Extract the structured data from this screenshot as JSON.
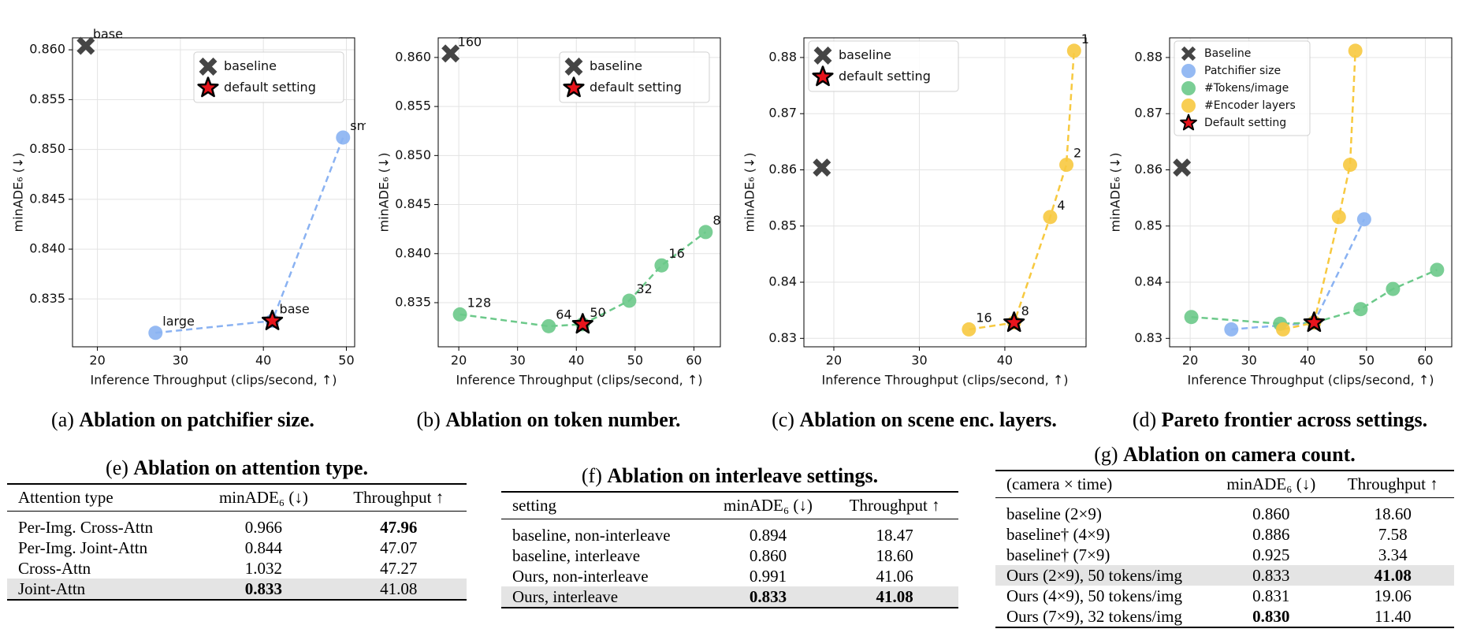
{
  "chart_data": [
    {
      "type": "line",
      "label": "(a)",
      "title": "Ablation on patchifier size.",
      "xlabel": "Inference Throughput (clips/second, ↑)",
      "ylabel": "minADE₆ (↓)",
      "xlim": [
        17,
        51
      ],
      "ylim": [
        0.8302,
        0.8612
      ],
      "xticks": [
        20,
        30,
        40,
        50
      ],
      "yticks": [
        0.835,
        {
          "value": 0.84,
          "label": "0.840"
        },
        0.845,
        {
          "value": 0.85,
          "label": "0.850"
        },
        0.855,
        {
          "value": 0.86,
          "label": "0.860"
        }
      ],
      "grid": true,
      "legend": "upper right",
      "series": [
        {
          "name": "baseline",
          "marker": "x",
          "color": "#454545",
          "x": [
            18.6
          ],
          "values": [
            0.8604
          ],
          "point_labels": [
            "base"
          ]
        },
        {
          "marker": "o",
          "color": "#8ab2f2",
          "linestyle": "dashed",
          "x": [
            27,
            41.08,
            49.6
          ],
          "values": [
            0.8316,
            0.8328,
            0.8512
          ],
          "point_labels": [
            "large",
            "base",
            "small"
          ]
        },
        {
          "name": "default setting",
          "marker": "*",
          "color": "#e8141c",
          "x": [
            41.08
          ],
          "values": [
            0.8328
          ]
        }
      ]
    },
    {
      "type": "line",
      "label": "(b)",
      "title": "Ablation on token number.",
      "xlabel": "Inference Throughput (clips/second, ↑)",
      "ylabel": "minADE₆ (↓)",
      "xlim": [
        16.5,
        64.5
      ],
      "ylim": [
        0.8305,
        0.862
      ],
      "xticks": [
        20,
        30,
        40,
        50,
        60
      ],
      "yticks": [
        0.835,
        {
          "value": 0.84,
          "label": "0.840"
        },
        0.845,
        {
          "value": 0.85,
          "label": "0.850"
        },
        0.855,
        {
          "value": 0.86,
          "label": "0.860"
        }
      ],
      "grid": true,
      "legend": "upper right",
      "series": [
        {
          "name": "baseline",
          "marker": "x",
          "color": "#454545",
          "x": [
            18.6
          ],
          "values": [
            0.8604
          ],
          "point_labels": [
            "160"
          ]
        },
        {
          "marker": "o",
          "color": "#6cc98a",
          "linestyle": "dashed",
          "x": [
            20.2,
            35.3,
            41.08,
            49,
            54.5,
            62
          ],
          "values": [
            0.8338,
            0.8326,
            0.8328,
            0.8352,
            0.8388,
            0.8422
          ],
          "point_labels": [
            "128",
            "64",
            "50",
            "32",
            "16",
            "8"
          ]
        },
        {
          "name": "default setting",
          "marker": "*",
          "color": "#e8141c",
          "x": [
            41.08
          ],
          "values": [
            0.8328
          ]
        }
      ]
    },
    {
      "type": "line",
      "label": "(c)",
      "title": "Ablation on scene enc. layers.",
      "xlabel": "Inference Throughput (clips/second, ↑)",
      "ylabel": "minADE₆ (↓)",
      "xlim": [
        16.5,
        49.5
      ],
      "ylim": [
        0.8285,
        0.8835
      ],
      "xticks": [
        20,
        30,
        40
      ],
      "yticks": [
        0.83,
        0.84,
        0.85,
        0.86,
        0.87,
        0.88
      ],
      "grid": true,
      "legend": "upper left",
      "series": [
        {
          "name": "baseline",
          "marker": "x",
          "color": "#454545",
          "x": [
            18.6
          ],
          "values": [
            0.8604
          ]
        },
        {
          "marker": "o",
          "color": "#f7c940",
          "linestyle": "dashed",
          "x": [
            35.8,
            41.08,
            45.3,
            47.2,
            48.1
          ],
          "values": [
            0.8316,
            0.8328,
            0.8516,
            0.8609,
            0.8812
          ],
          "point_labels": [
            "16",
            "8",
            "4",
            "2",
            "1"
          ]
        },
        {
          "name": "default setting",
          "marker": "*",
          "color": "#e8141c",
          "x": [
            41.08
          ],
          "values": [
            0.8328
          ]
        }
      ]
    },
    {
      "type": "line",
      "label": "(d)",
      "title": "Pareto frontier across settings.",
      "xlabel": "Inference Throughput (clips/second, ↑)",
      "ylabel": "minADE₆ (↓)",
      "xlim": [
        16.5,
        64.5
      ],
      "ylim": [
        0.8285,
        0.8835
      ],
      "xticks": [
        20,
        30,
        40,
        50,
        60
      ],
      "yticks": [
        0.83,
        0.84,
        0.85,
        0.86,
        0.87,
        0.88
      ],
      "grid": true,
      "legend": "upper left",
      "series": [
        {
          "name": "Baseline",
          "marker": "x",
          "color": "#454545",
          "x": [
            18.6
          ],
          "values": [
            0.8604
          ]
        },
        {
          "name": "Patchifier size",
          "marker": "o",
          "color": "#8ab2f2",
          "linestyle": "dashed",
          "x": [
            27,
            41.08,
            49.6
          ],
          "values": [
            0.8316,
            0.8328,
            0.8512
          ]
        },
        {
          "name": "#Tokens/image",
          "marker": "o",
          "color": "#6cc98a",
          "linestyle": "dashed",
          "x": [
            20.2,
            35.3,
            41.08,
            49,
            54.5,
            62
          ],
          "values": [
            0.8338,
            0.8326,
            0.8328,
            0.8352,
            0.8388,
            0.8422
          ]
        },
        {
          "name": "#Encoder layers",
          "marker": "o",
          "color": "#f7c940",
          "linestyle": "dashed",
          "x": [
            35.8,
            41.08,
            45.3,
            47.2,
            48.1
          ],
          "values": [
            0.8316,
            0.8328,
            0.8516,
            0.8609,
            0.8812
          ]
        },
        {
          "name": "Default setting",
          "marker": "*",
          "color": "#e8141c",
          "x": [
            41.08
          ],
          "values": [
            0.8328
          ]
        }
      ]
    }
  ],
  "tables": [
    {
      "label": "(e)",
      "title": "Ablation on attention type.",
      "columns": [
        "Attention type",
        "minADE₆ (↓)",
        "Throughput ↑"
      ],
      "rows": [
        [
          "Per-Img. Cross-Attn",
          "0.966",
          "47.96"
        ],
        [
          "Per-Img. Joint-Attn",
          "0.844",
          "47.07"
        ],
        [
          "Cross-Attn",
          "1.032",
          "47.27"
        ],
        [
          "Joint-Attn",
          "0.833",
          "41.08"
        ]
      ],
      "highlight_row": 3,
      "bold_cells": [
        [
          0,
          2
        ],
        [
          3,
          1
        ]
      ]
    },
    {
      "label": "(f)",
      "title": "Ablation on interleave settings.",
      "columns": [
        "setting",
        "minADE₆ (↓)",
        "Throughput ↑"
      ],
      "rows": [
        [
          "baseline, non-interleave",
          "0.894",
          "18.47"
        ],
        [
          "baseline, interleave",
          "0.860",
          "18.60"
        ],
        [
          "Ours, non-interleave",
          "0.991",
          "41.06"
        ],
        [
          "Ours, interleave",
          "0.833",
          "41.08"
        ]
      ],
      "highlight_row": 3,
      "bold_cells": [
        [
          3,
          1
        ],
        [
          3,
          2
        ]
      ]
    },
    {
      "label": "(g)",
      "title": "Ablation on camera count.",
      "columns": [
        "(camera × time)",
        "minADE₆ (↓)",
        "Throughput ↑"
      ],
      "rows": [
        [
          "baseline (2×9)",
          "0.860",
          "18.60"
        ],
        [
          "baseline† (4×9)",
          "0.886",
          "7.58"
        ],
        [
          "baseline† (7×9)",
          "0.925",
          "3.34"
        ],
        [
          "Ours (2×9), 50 tokens/img",
          "0.833",
          "41.08"
        ],
        [
          "Ours (4×9), 50 tokens/img",
          "0.831",
          "19.06"
        ],
        [
          "Ours (7×9), 32 tokens/img",
          "0.830",
          "11.40"
        ]
      ],
      "highlight_row": 3,
      "bold_cells": [
        [
          3,
          2
        ],
        [
          5,
          1
        ]
      ]
    }
  ]
}
